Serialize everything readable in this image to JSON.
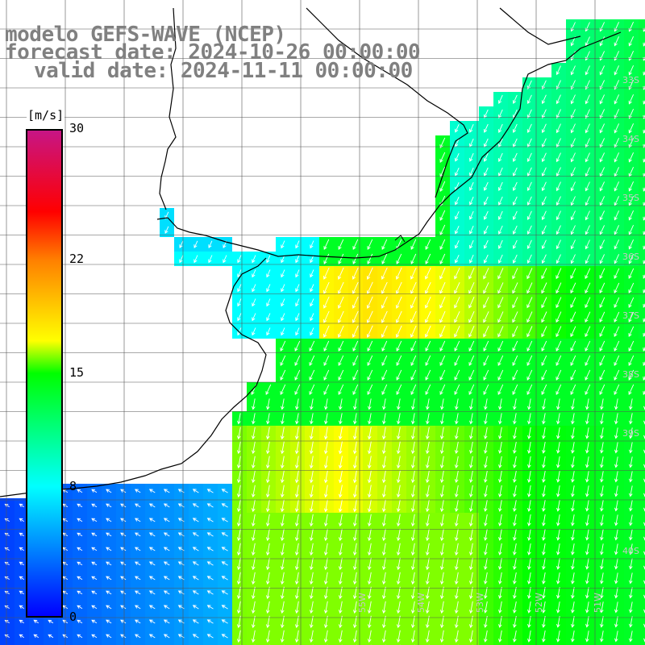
{
  "title": {
    "line1": "modelo GEFS-WAVE (NCEP)",
    "line2": "forecast date: 2024-10-26 00:00:00",
    "line3": "valid date: 2024-11-11 00:00:00"
  },
  "colorbar": {
    "unit": "[m/s]",
    "ticks": [
      "30",
      "22",
      "15",
      "8",
      "0"
    ],
    "tick_values": [
      30,
      22,
      15,
      8,
      0
    ],
    "range": [
      0,
      30
    ],
    "stops": [
      {
        "v": 0,
        "c": "#0000ff"
      },
      {
        "v": 8,
        "c": "#00ffff"
      },
      {
        "v": 15,
        "c": "#00ff00"
      },
      {
        "v": 17,
        "c": "#ffff00"
      },
      {
        "v": 22,
        "c": "#ff8000"
      },
      {
        "v": 25,
        "c": "#ff0000"
      },
      {
        "v": 30,
        "c": "#c71585"
      }
    ]
  },
  "grid": {
    "lon_labels": [
      "55W",
      "54W",
      "53W",
      "52W",
      "51W"
    ],
    "lat_labels": [
      "33S",
      "34S",
      "35S",
      "36S",
      "37S",
      "38S",
      "39S",
      "40S"
    ]
  },
  "map": {
    "field": "wind speed (m/s) with direction arrows",
    "ocean_cell_color": "#33ff33"
  }
}
